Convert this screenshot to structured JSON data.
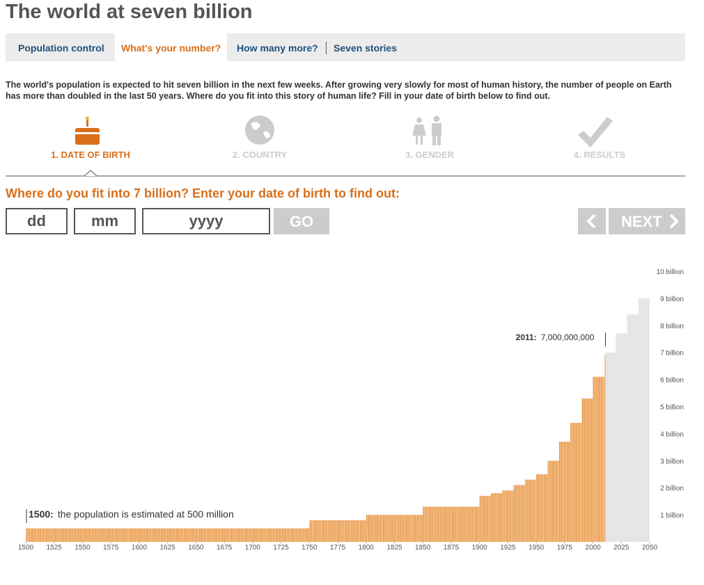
{
  "header": {
    "title": "The world at seven billion"
  },
  "nav": [
    "Population control",
    "What's your number?",
    "How many more?",
    "Seven stories"
  ],
  "intro": "The world's population is expected to hit seven billion in the next few weeks. After growing very slowly for most of human history, the number of people on Earth has more than doubled in the last 50 years. Where do you fit into this story of human life? Fill in your date of birth below to find out.",
  "steps": [
    "1. DATE OF BIRTH",
    "2. COUNTRY",
    "3. GENDER",
    "4. RESULTS"
  ],
  "form": {
    "heading": "Where do you fit into 7 billion? Enter your date of birth to find out:",
    "day": "dd",
    "month": "mm",
    "year": "yyyy",
    "go": "GO",
    "next": "NEXT"
  },
  "chart_data": {
    "type": "bar",
    "series": [
      {
        "color": "#e8913a",
        "x": [
          1500,
          1510,
          1520,
          1530,
          1540,
          1550,
          1560,
          1570,
          1580,
          1590,
          1600,
          1610,
          1620,
          1630,
          1640,
          1650,
          1660,
          1670,
          1680,
          1690,
          1700,
          1710,
          1720,
          1730,
          1740,
          1750,
          1760,
          1770,
          1780,
          1790,
          1800,
          1810,
          1820,
          1830,
          1840,
          1850,
          1860,
          1870,
          1880,
          1890,
          1900,
          1910,
          1920,
          1930,
          1940,
          1950,
          1960,
          1970,
          1980,
          1990,
          2000,
          2010
        ],
        "values": [
          0.5,
          0.5,
          0.5,
          0.5,
          0.5,
          0.5,
          0.5,
          0.5,
          0.5,
          0.5,
          0.5,
          0.5,
          0.5,
          0.5,
          0.5,
          0.5,
          0.5,
          0.5,
          0.5,
          0.5,
          0.5,
          0.5,
          0.5,
          0.5,
          0.5,
          0.8,
          0.8,
          0.8,
          0.8,
          0.8,
          1.0,
          1.0,
          1.0,
          1.0,
          1.0,
          1.3,
          1.3,
          1.3,
          1.3,
          1.3,
          1.7,
          1.8,
          1.9,
          2.1,
          2.3,
          2.5,
          3.0,
          3.7,
          4.4,
          5.3,
          6.1,
          6.9
        ]
      },
      {
        "color": "#dcdcdc",
        "x": [
          2011,
          2020,
          2030,
          2040
        ],
        "values": [
          7.0,
          7.7,
          8.4,
          9.0
        ]
      }
    ],
    "xlim": [
      1500,
      2050
    ],
    "xticks": [
      1500,
      1525,
      1550,
      1575,
      1600,
      1625,
      1650,
      1675,
      1700,
      1725,
      1750,
      1775,
      1800,
      1825,
      1850,
      1875,
      1900,
      1925,
      1950,
      1975,
      2000,
      2025,
      2050
    ],
    "ylim": [
      0,
      10
    ],
    "yticks": [
      {
        "value": 1,
        "label": "1 billion"
      },
      {
        "value": 2,
        "label": "2 billion"
      },
      {
        "value": 3,
        "label": "3 billion"
      },
      {
        "value": 4,
        "label": "4 billion"
      },
      {
        "value": 5,
        "label": "5 billion"
      },
      {
        "value": 6,
        "label": "6 billion"
      },
      {
        "value": 7,
        "label": "7 billion"
      },
      {
        "value": 8,
        "label": "8 billion"
      },
      {
        "value": 9,
        "label": "9 billion"
      },
      {
        "value": 10,
        "label": "10 billion"
      }
    ],
    "annotations": [
      {
        "label": "2011:",
        "text": "7,000,000,000"
      },
      {
        "label": "1500:",
        "text": "the population is estimated at 500 million"
      }
    ]
  }
}
